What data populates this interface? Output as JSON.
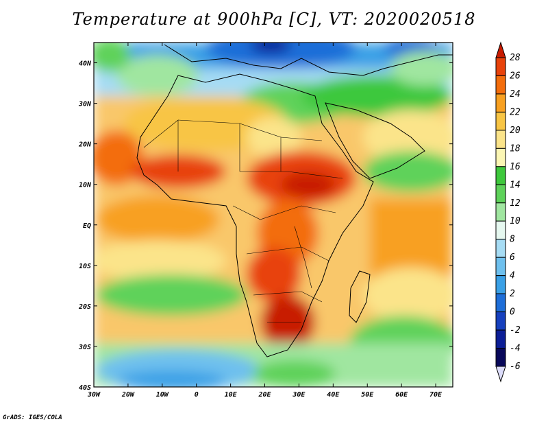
{
  "title": "Temperature at 900hPa [C], VT: 2020020518",
  "credit": "GrADS: IGES/COLA",
  "map": {
    "lon_range": [
      -30,
      75
    ],
    "lat_range": [
      -40,
      45
    ],
    "lat_ticks": [
      "40N",
      "30N",
      "20N",
      "10N",
      "EQ",
      "10S",
      "20S",
      "30S",
      "40S"
    ],
    "lon_ticks": [
      "30W",
      "20W",
      "10W",
      "0",
      "10E",
      "20E",
      "30E",
      "40E",
      "50E",
      "60E",
      "70E"
    ]
  },
  "colorbar": {
    "labels": [
      "28",
      "26",
      "24",
      "22",
      "20",
      "18",
      "16",
      "14",
      "12",
      "10",
      "8",
      "6",
      "4",
      "2",
      "0",
      "-2",
      "-4",
      "-6"
    ],
    "colors": [
      "#c81b00",
      "#e8420a",
      "#f36d0c",
      "#f8a021",
      "#f8c544",
      "#fbe48a",
      "#fbf6b4",
      "#3ec83c",
      "#5ed25a",
      "#a0e6a0",
      "#e6f8f0",
      "#a6dcf4",
      "#6ec0ee",
      "#3aa0e6",
      "#1e6ed8",
      "#1640be",
      "#0c1e96",
      "#08085a",
      "#dcdcfa"
    ]
  }
}
